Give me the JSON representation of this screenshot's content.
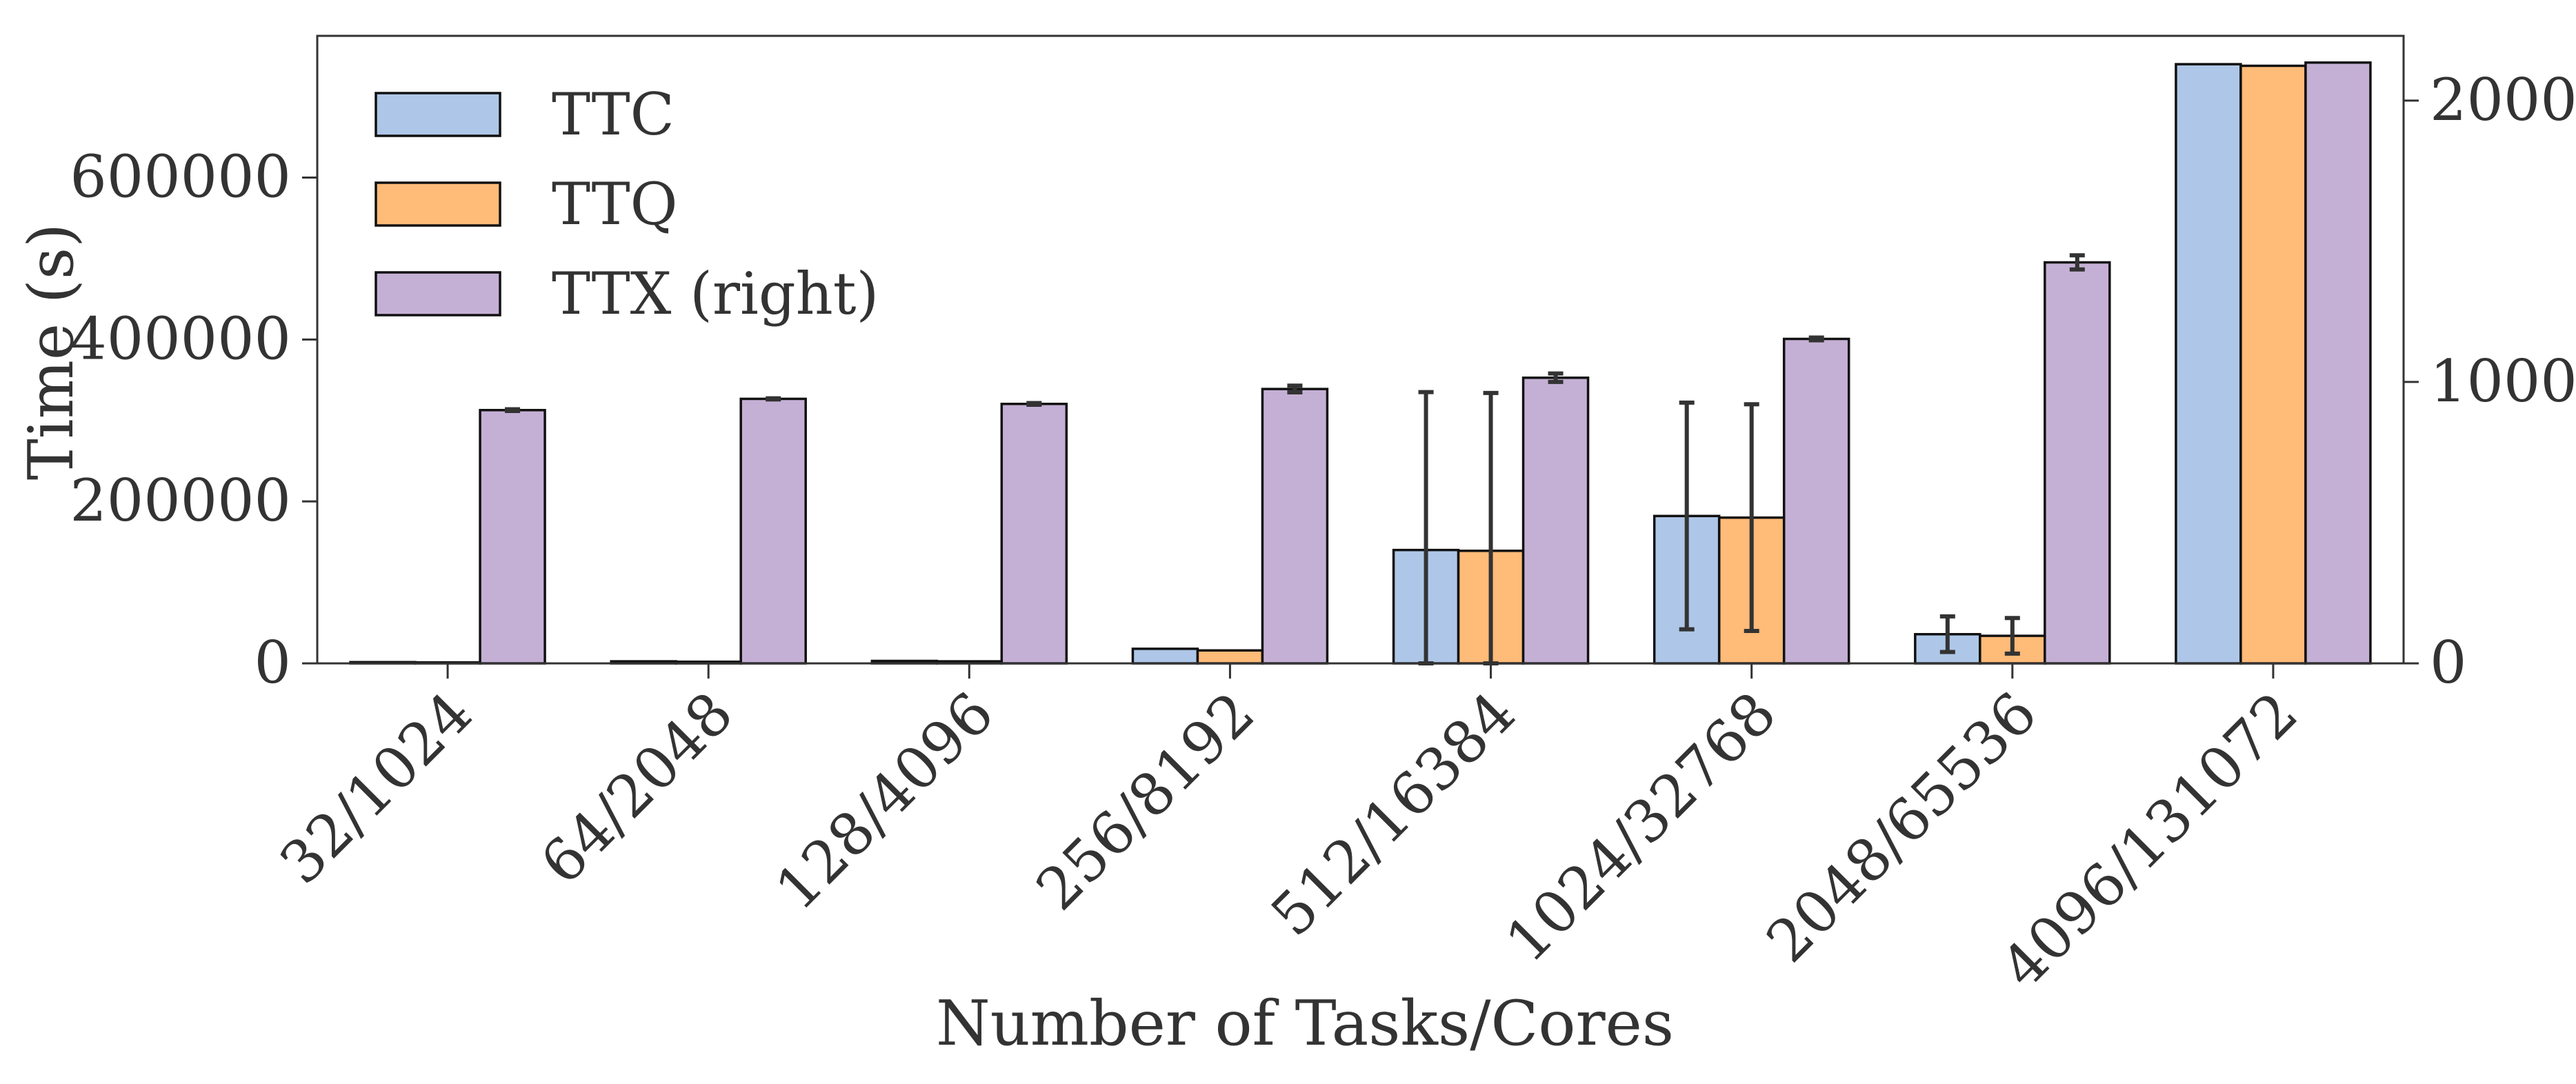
{
  "chart_data": {
    "type": "bar",
    "xlabel": "Number of Tasks/Cores",
    "ylabel": "Time (s)",
    "ylabel_right": "",
    "categories": [
      "32/1024",
      "64/2048",
      "128/4096",
      "256/8192",
      "512/16384",
      "1024/32768",
      "2048/65536",
      "4096/131072"
    ],
    "y_left": {
      "lim": [
        0,
        775000
      ],
      "ticks": [
        0,
        200000,
        400000,
        600000
      ]
    },
    "y_right": {
      "lim": [
        0,
        2230
      ],
      "ticks": [
        0,
        1000,
        2000
      ]
    },
    "series": [
      {
        "name": "TTC",
        "axis": "left",
        "color": "#aec7e8",
        "values": [
          1500,
          2500,
          3000,
          18000,
          140000,
          182000,
          36000,
          740000
        ],
        "errors": [
          0,
          0,
          0,
          0,
          195000,
          140000,
          22000,
          0
        ]
      },
      {
        "name": "TTQ",
        "axis": "left",
        "color": "#ffbb78",
        "values": [
          1200,
          2000,
          2500,
          16000,
          139000,
          180000,
          34000,
          738000
        ],
        "errors": [
          0,
          0,
          0,
          0,
          195000,
          140000,
          22000,
          0
        ]
      },
      {
        "name": "TTX (right)",
        "axis": "right",
        "color": "#c5b0d5",
        "values": [
          900,
          940,
          922,
          975,
          1015,
          1153,
          1425,
          2135
        ],
        "errors": [
          3,
          2,
          3,
          12,
          15,
          5,
          25,
          0
        ]
      }
    ],
    "legend_position": "top-left",
    "grid": false
  }
}
